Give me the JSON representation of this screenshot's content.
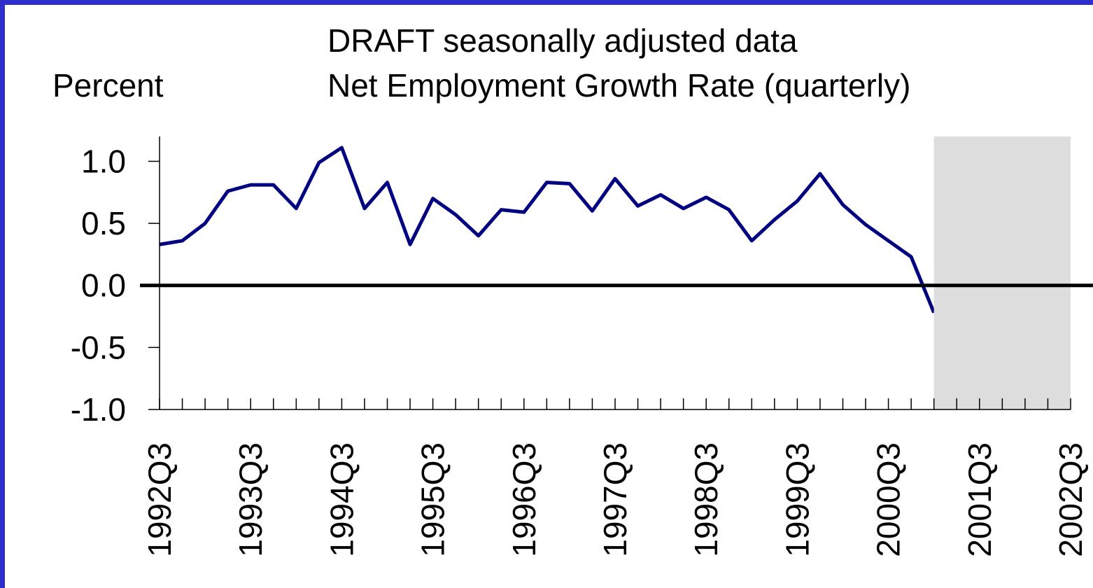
{
  "chart_data": {
    "type": "line",
    "title": "DRAFT seasonally adjusted data",
    "subtitle": "Net Employment Growth Rate (quarterly)",
    "y_label": "Percent",
    "categories": [
      "1992Q3",
      null,
      null,
      null,
      "1993Q3",
      null,
      null,
      null,
      "1994Q3",
      null,
      null,
      null,
      "1995Q3",
      null,
      null,
      null,
      "1996Q3",
      null,
      null,
      null,
      "1997Q3",
      null,
      null,
      null,
      "1998Q3",
      null,
      null,
      null,
      "1999Q3",
      null,
      null,
      null,
      "2000Q3",
      null,
      null,
      null,
      "2001Q3",
      null,
      null,
      null,
      "2002Q3"
    ],
    "series": [
      {
        "name": "Net Employment Growth Rate",
        "color": "#000080",
        "values": [
          0.33,
          0.36,
          0.5,
          0.76,
          0.81,
          0.81,
          0.62,
          0.99,
          1.11,
          0.62,
          0.83,
          0.33,
          0.7,
          0.57,
          0.4,
          0.61,
          0.59,
          0.83,
          0.82,
          0.6,
          0.86,
          0.64,
          0.73,
          0.62,
          0.71,
          0.61,
          0.36,
          0.53,
          0.68,
          0.9,
          0.65,
          0.49,
          0.36,
          0.23,
          -0.22,
          null,
          null,
          null,
          null,
          null,
          null
        ]
      }
    ],
    "ylim": [
      -1.0,
      1.2
    ],
    "yticks": [
      {
        "value": -1,
        "label": "-1.0"
      },
      {
        "value": -0.5,
        "label": "-0.5"
      },
      {
        "value": 0,
        "label": "0.0"
      },
      {
        "value": 0.5,
        "label": "0.5"
      },
      {
        "value": 1,
        "label": "1.0"
      }
    ],
    "shade_color": "#dddddd"
  }
}
